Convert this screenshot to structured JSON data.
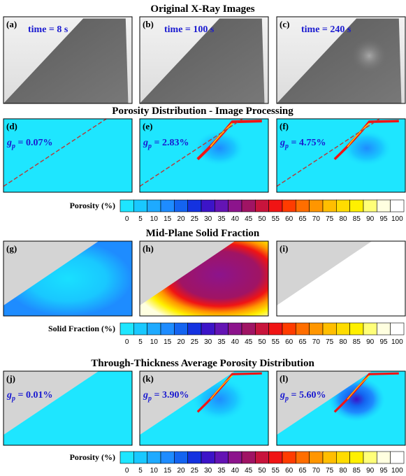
{
  "sections": [
    {
      "title": "Original X-Ray Images",
      "panels": [
        {
          "label": "(a)",
          "annotation": "time = 8 s"
        },
        {
          "label": "(b)",
          "annotation": "time = 100 s"
        },
        {
          "label": "(c)",
          "annotation": "time = 240 s"
        }
      ]
    },
    {
      "title": "Porosity Distribution - Image Processing",
      "panels": [
        {
          "label": "(d)",
          "variable": "g",
          "subscript": "p",
          "annotation": " = 0.07%"
        },
        {
          "label": "(e)",
          "variable": "g",
          "subscript": "p",
          "annotation": " = 2.83%"
        },
        {
          "label": "(f)",
          "variable": "g",
          "subscript": "p",
          "annotation": " = 4.75%"
        }
      ]
    },
    {
      "title": "Mid-Plane Solid Fraction",
      "panels": [
        {
          "label": "(g)"
        },
        {
          "label": "(h)"
        },
        {
          "label": "(i)"
        }
      ]
    },
    {
      "title": "Through-Thickness Average Porosity Distribution",
      "panels": [
        {
          "label": "(j)",
          "variable": "g",
          "subscript": "p",
          "annotation": " = 0.01%"
        },
        {
          "label": "(k)",
          "variable": "g",
          "subscript": "p",
          "annotation": " = 3.90%"
        },
        {
          "label": "(l)",
          "variable": "g",
          "subscript": "p",
          "annotation": " = 5.60%"
        }
      ]
    }
  ],
  "colorbars": [
    {
      "label": "Porosity (%)",
      "ticks": [
        0,
        5,
        10,
        15,
        20,
        25,
        30,
        35,
        40,
        45,
        50,
        55,
        60,
        65,
        70,
        75,
        80,
        85,
        90,
        95,
        100
      ]
    },
    {
      "label": "Solid Fraction (%)",
      "ticks": [
        0,
        5,
        10,
        15,
        20,
        25,
        30,
        35,
        40,
        45,
        50,
        55,
        60,
        65,
        70,
        75,
        80,
        85,
        90,
        95,
        100
      ]
    },
    {
      "label": "Porosity (%)",
      "ticks": [
        0,
        5,
        10,
        15,
        20,
        25,
        30,
        35,
        40,
        45,
        50,
        55,
        60,
        65,
        70,
        75,
        80,
        85,
        90,
        95,
        100
      ]
    }
  ],
  "colorbar_colors": [
    "#1ee6ff",
    "#19c8ff",
    "#1eaaff",
    "#1e8cff",
    "#1464f0",
    "#1432e0",
    "#3c14c8",
    "#6414b4",
    "#8c148c",
    "#a01464",
    "#c8143c",
    "#f01414",
    "#ff3c00",
    "#ff6e00",
    "#ff9600",
    "#ffbe00",
    "#ffdc00",
    "#fff000",
    "#ffff78",
    "#ffffe0",
    "#ffffff"
  ]
}
